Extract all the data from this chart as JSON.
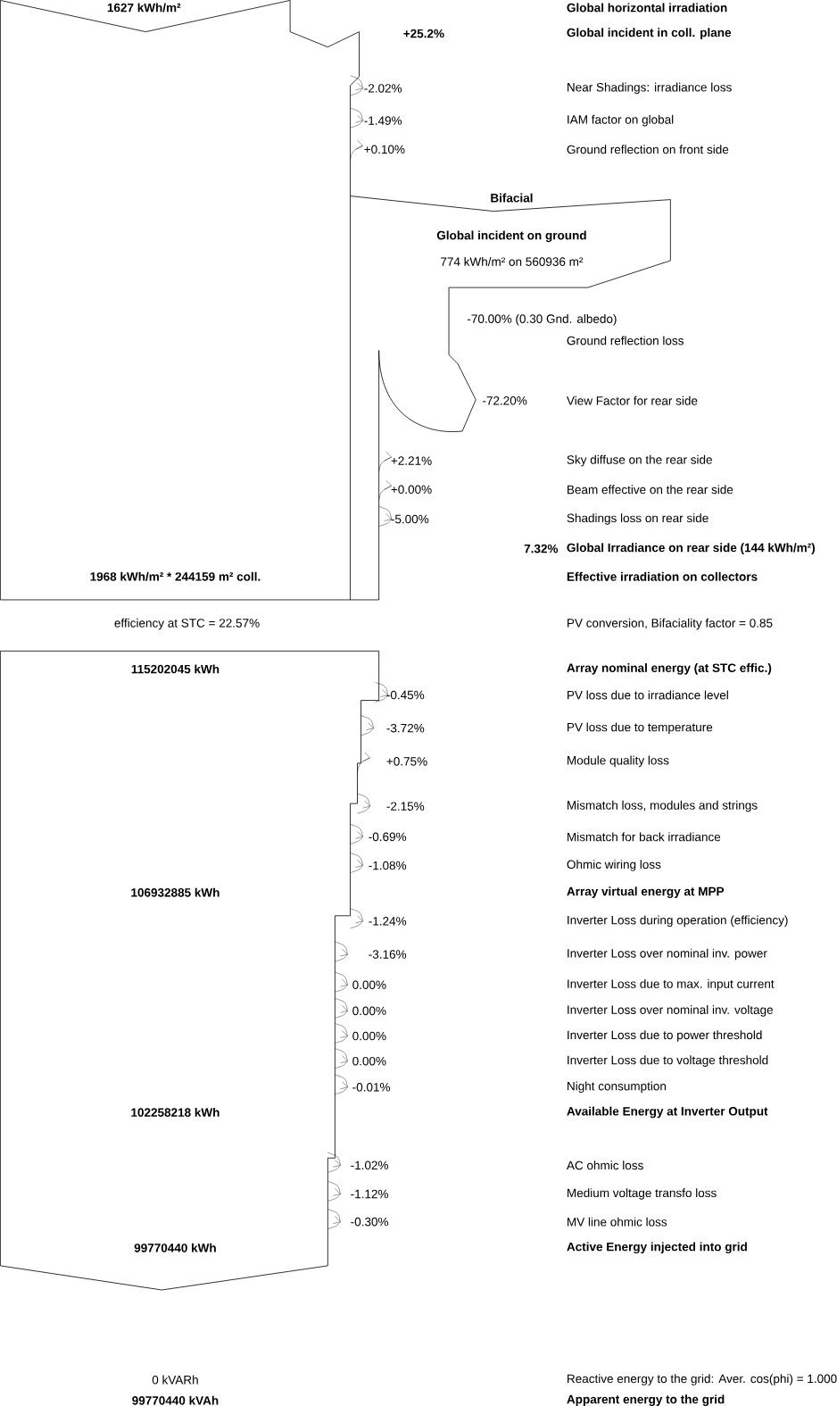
{
  "chart_data": {
    "type": "other",
    "categories": [
      "Global horizontal irradiation",
      "Global incident in coll. plane",
      "Near Shadings: irradiance loss",
      "IAM factor on global",
      "Ground reflection on front side",
      "Ground reflection loss",
      "View Factor for rear side",
      "Sky diffuse on the rear side",
      "Beam effective on the rear side",
      "Shadings loss on rear side",
      "Global Irradiance on rear side  (144 kWh/m²)",
      "Effective irradiation on collectors",
      "PV conversion, Bifaciality factor = 0.85",
      "Array nominal energy (at STC effic.)",
      "PV loss due to irradiance level",
      "PV loss due to temperature",
      "Module quality loss",
      "Mismatch loss, modules and strings",
      "Mismatch for back irradiance",
      "Ohmic wiring loss",
      "Array virtual energy at MPP",
      "Inverter Loss during operation (efficiency)",
      "Inverter Loss over nominal inv. power",
      "Inverter Loss due to max. input current",
      "Inverter Loss over nominal inv. voltage",
      "Inverter Loss due to power threshold",
      "Inverter Loss due to voltage threshold",
      "Night consumption",
      "Available Energy at Inverter Output",
      "AC ohmic loss",
      "Medium voltage transfo loss",
      "MV line ohmic loss",
      "Active Energy injected into grid",
      "Reactive energy to the grid: Aver. cos(phi) = 1.000",
      "Apparent energy to the grid"
    ],
    "value_labels": [
      "1627 kWh/m²",
      "+25.2%",
      "-2.02%",
      "-1.49%",
      "+0.10%",
      "-70.00% (0.30 Gnd. albedo)",
      "-72.20%",
      "+2.21%",
      "+0.00%",
      "-5.00%",
      "7.32%",
      "1968 kWh/m² * 244159 m² coll.",
      "efficiency at STC = 22.57%",
      "115202045 kWh",
      "-0.45%",
      "-3.72%",
      "+0.75%",
      "-2.15%",
      "-0.69%",
      "-1.08%",
      "106932885 kWh",
      "-1.24%",
      "-3.16%",
      "0.00%",
      "0.00%",
      "0.00%",
      "0.00%",
      "-0.01%",
      "102258218 kWh",
      "-1.02%",
      "-1.12%",
      "-0.30%",
      "99770440 kWh",
      "0 kVARh",
      "99770440 kVAh"
    ],
    "values": [
      1627,
      25.2,
      -2.02,
      -1.49,
      0.1,
      -70.0,
      -72.2,
      2.21,
      0.0,
      -5.0,
      7.32,
      1968,
      22.57,
      115202045,
      -0.45,
      -3.72,
      0.75,
      -2.15,
      -0.69,
      -1.08,
      106932885,
      -1.24,
      -3.16,
      0.0,
      0.0,
      0.0,
      0.0,
      -0.01,
      102258218,
      -1.02,
      -1.12,
      -0.3,
      99770440,
      0,
      99770440
    ],
    "annotations": [
      "Bifacial",
      "Global incident on ground",
      "774 kWh/m² on 560936 m²"
    ]
  }
}
